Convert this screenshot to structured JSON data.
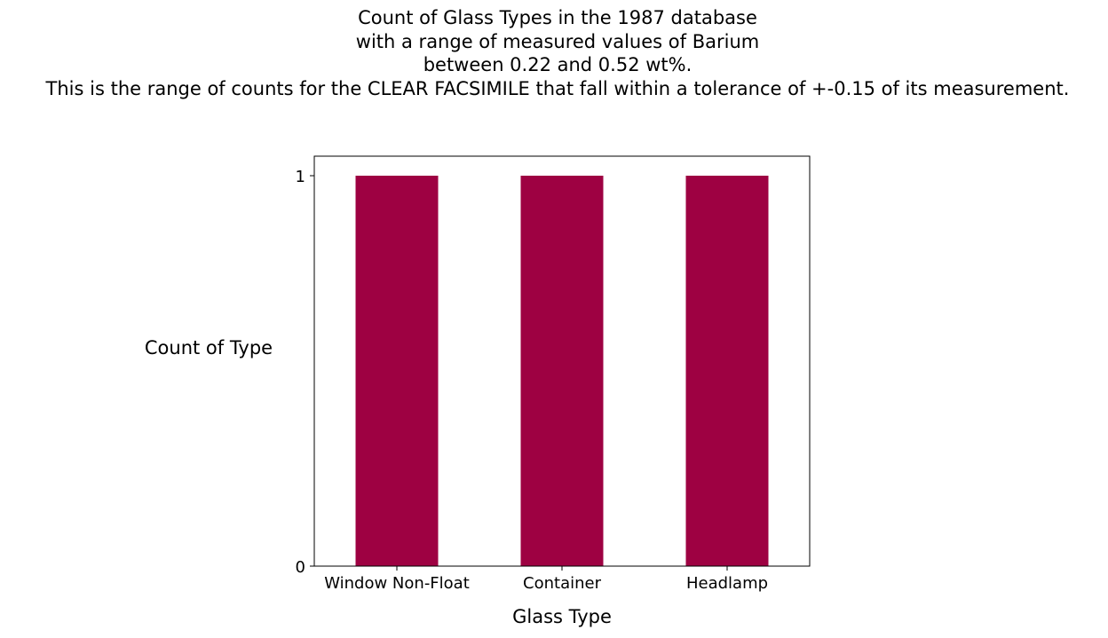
{
  "chart_data": {
    "type": "bar",
    "title_lines": [
      "Count of Glass Types in the 1987 database",
      "with a range of measured values of Barium",
      "between 0.22 and 0.52 wt%.",
      "This is the range of counts for the CLEAR FACSIMILE that fall within a tolerance of +-0.15 of its measurement."
    ],
    "categories": [
      "Window Non-Float",
      "Container",
      "Headlamp"
    ],
    "values": [
      1,
      1,
      1
    ],
    "xlabel": "Glass Type",
    "ylabel": "Count of Type",
    "ylim": [
      0,
      1.05
    ],
    "yticks": [
      0,
      1
    ],
    "grid": false,
    "legend": "none",
    "bar_color": "#9e0142"
  }
}
